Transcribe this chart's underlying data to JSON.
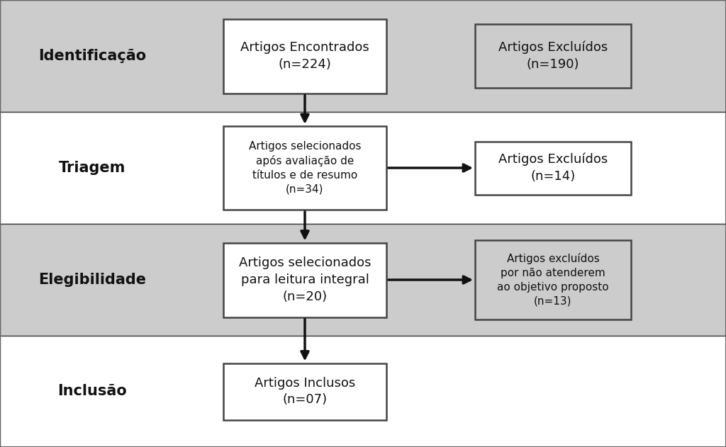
{
  "background_color": "#ffffff",
  "row_colors": [
    "#cccccc",
    "#ffffff",
    "#cccccc",
    "#ffffff"
  ],
  "row_labels": [
    "Identificação",
    "Triagem",
    "Elegibilidade",
    "Inclusão"
  ],
  "row_label_fontsize": 15,
  "main_boxes": [
    {
      "text": "Artigos Encontrados\n(n=224)",
      "row": 0,
      "fontsize": 13
    },
    {
      "text": "Artigos selecionados\napós avaliação de\ntítulos e de resumo\n(n=34)",
      "row": 1,
      "fontsize": 11
    },
    {
      "text": "Artigos selecionados\npara leitura integral\n(n=20)",
      "row": 2,
      "fontsize": 13
    },
    {
      "text": "Artigos Inclusos\n(n=07)",
      "row": 3,
      "fontsize": 13
    }
  ],
  "side_boxes": [
    {
      "text": "Artigos Excluídos\n(n=190)",
      "row": 0,
      "fontsize": 13,
      "bg": "#cccccc"
    },
    {
      "text": "Artigos Excluídos\n(n=14)",
      "row": 1,
      "fontsize": 13,
      "bg": "#ffffff"
    },
    {
      "text": "Artigos excluídos\npor não atenderem\nao objetivo proposto\n(n=13)",
      "row": 2,
      "fontsize": 11,
      "bg": "#cccccc"
    }
  ],
  "border_color": "#444444",
  "box_bg": "#ffffff",
  "text_color": "#111111",
  "arrow_color": "#111111"
}
